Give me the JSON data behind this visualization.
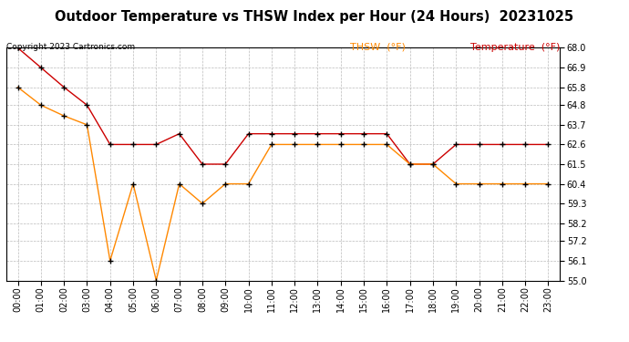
{
  "title": "Outdoor Temperature vs THSW Index per Hour (24 Hours)  20231025",
  "copyright": "Copyright 2023 Cartronics.com",
  "thsw_label": "THSW  (°F)",
  "temp_label": "Temperature  (°F)",
  "thsw_color": "#cc0000",
  "temp_color": "#ff8800",
  "hours": [
    0,
    1,
    2,
    3,
    4,
    5,
    6,
    7,
    8,
    9,
    10,
    11,
    12,
    13,
    14,
    15,
    16,
    17,
    18,
    19,
    20,
    21,
    22,
    23
  ],
  "thsw": [
    68.0,
    66.9,
    65.8,
    64.8,
    62.6,
    62.6,
    62.6,
    63.2,
    61.5,
    61.5,
    63.2,
    63.2,
    63.2,
    63.2,
    63.2,
    63.2,
    63.2,
    61.5,
    61.5,
    62.6,
    62.6,
    62.6,
    62.6,
    62.6
  ],
  "temp": [
    65.8,
    64.8,
    64.2,
    63.7,
    56.1,
    60.4,
    55.0,
    60.4,
    59.3,
    60.4,
    60.4,
    62.6,
    62.6,
    62.6,
    62.6,
    62.6,
    62.6,
    61.5,
    61.5,
    60.4,
    60.4,
    60.4,
    60.4,
    60.4
  ],
  "ylim_min": 55.0,
  "ylim_max": 68.0,
  "yticks": [
    55.0,
    56.1,
    57.2,
    58.2,
    59.3,
    60.4,
    61.5,
    62.6,
    63.7,
    64.8,
    65.8,
    66.9,
    68.0
  ],
  "bg_color": "#ffffff",
  "grid_color": "#bbbbbb",
  "title_color": "#000000",
  "title_fontsize": 10.5,
  "copyright_color": "#000000",
  "copyright_fontsize": 6.5,
  "legend_fontsize": 8,
  "tick_fontsize": 7
}
